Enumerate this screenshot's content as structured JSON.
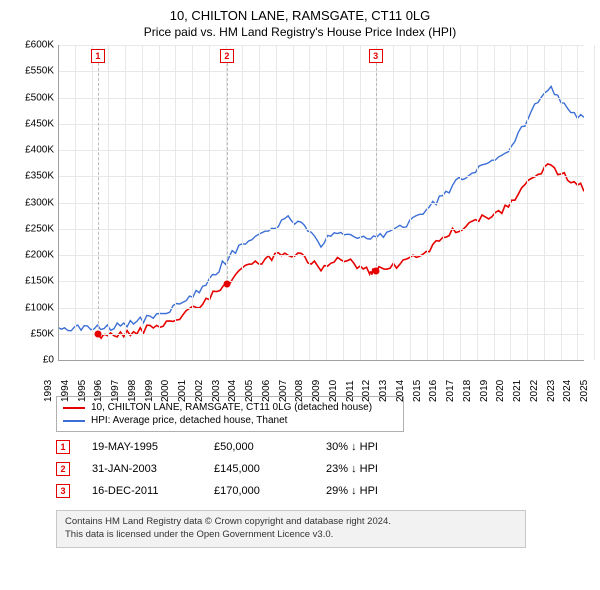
{
  "title": {
    "line1": "10, CHILTON LANE, RAMSGATE, CT11 0LG",
    "line2": "Price paid vs. HM Land Registry's House Price Index (HPI)"
  },
  "chart": {
    "type": "line",
    "background_color": "#ffffff",
    "grid_color": "#e8e8e8",
    "axis_color": "#a0a0a0",
    "text_color": "#000000",
    "fontsize_tick": 10,
    "x_axis": {
      "min_year": 1993,
      "max_year": 2025,
      "ticks": [
        1993,
        1994,
        1995,
        1996,
        1997,
        1998,
        1999,
        2000,
        2001,
        2002,
        2003,
        2004,
        2005,
        2006,
        2007,
        2008,
        2009,
        2010,
        2011,
        2012,
        2013,
        2014,
        2015,
        2016,
        2017,
        2018,
        2019,
        2020,
        2021,
        2022,
        2023,
        2024,
        2025
      ]
    },
    "y_axis": {
      "min": 0,
      "max": 600000,
      "tick_step": 50000,
      "tick_labels": [
        "£0",
        "£50K",
        "£100K",
        "£150K",
        "£200K",
        "£250K",
        "£300K",
        "£350K",
        "£400K",
        "£450K",
        "£500K",
        "£550K",
        "£600K"
      ]
    },
    "series": [
      {
        "name": "property",
        "label": "10, CHILTON LANE, RAMSGATE, CT11 0LG (detached house)",
        "color": "#e60000",
        "line_width": 1.6,
        "data": [
          [
            1995.38,
            50000
          ],
          [
            1996,
            50000
          ],
          [
            1997,
            53000
          ],
          [
            1998,
            60000
          ],
          [
            1999,
            68000
          ],
          [
            2000,
            80000
          ],
          [
            2001,
            95000
          ],
          [
            2002,
            118000
          ],
          [
            2003.08,
            145000
          ],
          [
            2004,
            170000
          ],
          [
            2005,
            188000
          ],
          [
            2006,
            200000
          ],
          [
            2007,
            208000
          ],
          [
            2008,
            200000
          ],
          [
            2009,
            176000
          ],
          [
            2010,
            192000
          ],
          [
            2011,
            188000
          ],
          [
            2011.96,
            170000
          ],
          [
            2012.2,
            172000
          ],
          [
            2013,
            178000
          ],
          [
            2014,
            190000
          ],
          [
            2015,
            205000
          ],
          [
            2016,
            225000
          ],
          [
            2017,
            248000
          ],
          [
            2018,
            265000
          ],
          [
            2019,
            275000
          ],
          [
            2020,
            288000
          ],
          [
            2021,
            318000
          ],
          [
            2022,
            358000
          ],
          [
            2023,
            373000
          ],
          [
            2024,
            350000
          ],
          [
            2025,
            330000
          ]
        ]
      },
      {
        "name": "hpi",
        "label": "HPI: Average price, detached house, Thanet",
        "color": "#3b6fd6",
        "line_width": 1.4,
        "data": [
          [
            1993,
            62000
          ],
          [
            1994,
            63000
          ],
          [
            1995,
            64000
          ],
          [
            1996,
            66000
          ],
          [
            1997,
            70000
          ],
          [
            1998,
            78000
          ],
          [
            1999,
            88000
          ],
          [
            2000,
            102000
          ],
          [
            2001,
            120000
          ],
          [
            2002,
            150000
          ],
          [
            2003,
            185000
          ],
          [
            2004,
            218000
          ],
          [
            2005,
            240000
          ],
          [
            2006,
            258000
          ],
          [
            2007,
            273000
          ],
          [
            2008,
            260000
          ],
          [
            2009,
            225000
          ],
          [
            2010,
            248000
          ],
          [
            2011,
            243000
          ],
          [
            2012,
            238000
          ],
          [
            2013,
            244000
          ],
          [
            2014,
            260000
          ],
          [
            2015,
            280000
          ],
          [
            2016,
            305000
          ],
          [
            2017,
            335000
          ],
          [
            2018,
            358000
          ],
          [
            2019,
            372000
          ],
          [
            2020,
            390000
          ],
          [
            2021,
            430000
          ],
          [
            2022,
            490000
          ],
          [
            2023,
            525000
          ],
          [
            2024,
            480000
          ],
          [
            2025,
            460000
          ]
        ]
      }
    ],
    "sale_markers": [
      {
        "n": "1",
        "year": 1995.38,
        "price": 50000
      },
      {
        "n": "2",
        "year": 2003.08,
        "price": 145000
      },
      {
        "n": "3",
        "year": 2011.96,
        "price": 170000
      }
    ],
    "marker_border_color": "#e60000",
    "marker_text_color": "#e60000"
  },
  "legend": {
    "items": [
      {
        "color": "#e60000",
        "label": "10, CHILTON LANE, RAMSGATE, CT11 0LG (detached house)"
      },
      {
        "color": "#3b6fd6",
        "label": "HPI: Average price, detached house, Thanet"
      }
    ]
  },
  "sales": [
    {
      "n": "1",
      "date": "19-MAY-1995",
      "price": "£50,000",
      "diff": "30% ↓ HPI"
    },
    {
      "n": "2",
      "date": "31-JAN-2003",
      "price": "£145,000",
      "diff": "23% ↓ HPI"
    },
    {
      "n": "3",
      "date": "16-DEC-2011",
      "price": "£170,000",
      "diff": "29% ↓ HPI"
    }
  ],
  "attribution": {
    "line1": "Contains HM Land Registry data © Crown copyright and database right 2024.",
    "line2": "This data is licensed under the Open Government Licence v3.0."
  }
}
